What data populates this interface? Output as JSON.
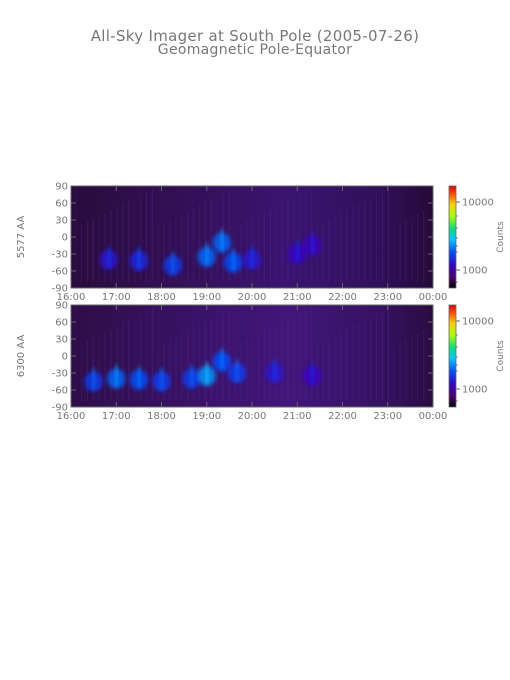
{
  "title": "All-Sky Imager at South Pole (2005-07-26)",
  "subtitle": "Geomagnetic Pole-Equator",
  "colors": {
    "axis": "#777777",
    "background": "#ffffff"
  },
  "chart_data": [
    {
      "type": "heatmap",
      "panel": "top",
      "ylabel": "5577 AA",
      "x_ticks": [
        "16:00",
        "17:00",
        "18:00",
        "19:00",
        "20:00",
        "21:00",
        "22:00",
        "23:00",
        "00:00"
      ],
      "y_ticks": [
        "90",
        "60",
        "30",
        "0",
        "-30",
        "-60",
        "-90"
      ],
      "ylim": [
        -90,
        90
      ],
      "xlim": [
        "16:00",
        "00:00"
      ],
      "colorbar": {
        "label": "Counts",
        "ticks": [
          "10000",
          "1000"
        ],
        "scale": "log"
      },
      "features": [
        {
          "x": "16:50",
          "y": -40,
          "intensity": 0.35
        },
        {
          "x": "17:30",
          "y": -42,
          "intensity": 0.4
        },
        {
          "x": "18:15",
          "y": -50,
          "intensity": 0.45
        },
        {
          "x": "19:00",
          "y": -35,
          "intensity": 0.55
        },
        {
          "x": "19:20",
          "y": -10,
          "intensity": 0.55
        },
        {
          "x": "19:35",
          "y": -45,
          "intensity": 0.5
        },
        {
          "x": "20:00",
          "y": -40,
          "intensity": 0.35
        },
        {
          "x": "21:00",
          "y": -30,
          "intensity": 0.3
        },
        {
          "x": "21:20",
          "y": -15,
          "intensity": 0.28
        }
      ]
    },
    {
      "type": "heatmap",
      "panel": "bottom",
      "ylabel": "6300 AA",
      "x_ticks": [
        "16:00",
        "17:00",
        "18:00",
        "19:00",
        "20:00",
        "21:00",
        "22:00",
        "23:00",
        "00:00"
      ],
      "y_ticks": [
        "90",
        "60",
        "30",
        "0",
        "-30",
        "-60",
        "-90"
      ],
      "ylim": [
        -90,
        90
      ],
      "xlim": [
        "16:00",
        "00:00"
      ],
      "colorbar": {
        "label": "Counts",
        "ticks": [
          "10000",
          "1000"
        ],
        "scale": "log"
      },
      "features": [
        {
          "x": "16:30",
          "y": -45,
          "intensity": 0.45
        },
        {
          "x": "17:00",
          "y": -40,
          "intensity": 0.55
        },
        {
          "x": "17:30",
          "y": -42,
          "intensity": 0.5
        },
        {
          "x": "18:00",
          "y": -45,
          "intensity": 0.45
        },
        {
          "x": "18:40",
          "y": -40,
          "intensity": 0.45
        },
        {
          "x": "19:00",
          "y": -35,
          "intensity": 0.65
        },
        {
          "x": "19:20",
          "y": -10,
          "intensity": 0.5
        },
        {
          "x": "19:40",
          "y": -30,
          "intensity": 0.45
        },
        {
          "x": "20:30",
          "y": -30,
          "intensity": 0.35
        },
        {
          "x": "21:20",
          "y": -35,
          "intensity": 0.3
        }
      ]
    }
  ]
}
